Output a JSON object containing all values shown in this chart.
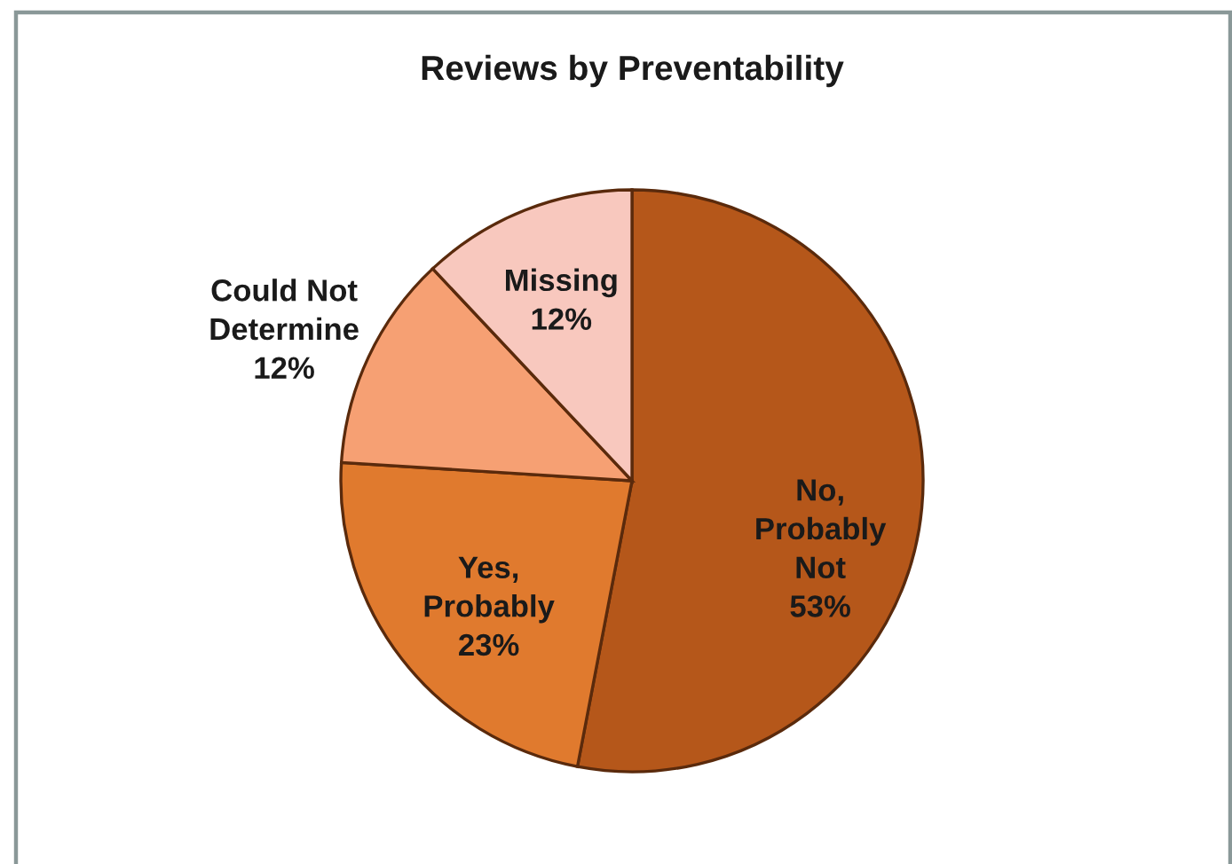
{
  "chart_data": {
    "type": "pie",
    "title": "Reviews by Preventability",
    "categories": [
      "No,\nProbably\nNot",
      "Yes,\nProbably",
      "Could Not\nDetermine",
      "Missing"
    ],
    "values": [
      53,
      23,
      12,
      12
    ],
    "value_labels": [
      "53%",
      "23%",
      "12%",
      "12%"
    ],
    "colors": [
      "#b5571a",
      "#e07a2e",
      "#f6a073",
      "#f8c8be"
    ],
    "legend": false
  }
}
